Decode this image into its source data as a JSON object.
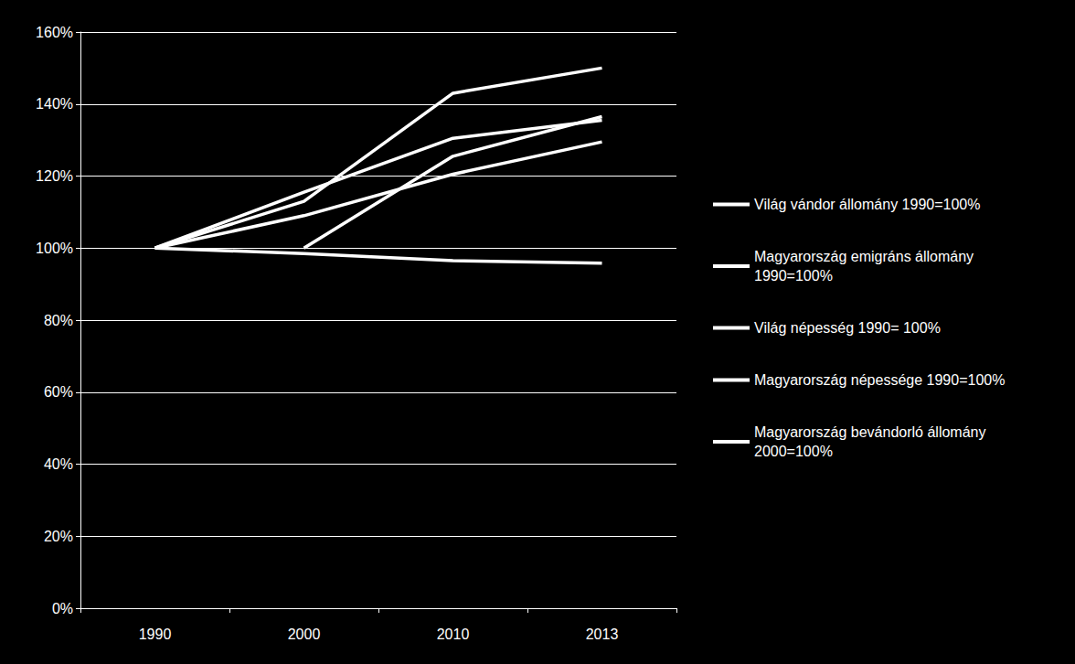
{
  "chart_data": {
    "type": "line",
    "categories": [
      "1990",
      "2000",
      "2010",
      "2013"
    ],
    "series": [
      {
        "name": "Világ vándor állomány 1990=100%",
        "color": "#ffffff",
        "values": [
          100,
          113,
          143,
          150
        ]
      },
      {
        "name": "Magyarország emigráns állomány 1990=100%",
        "color": "#ffffff",
        "values": [
          100,
          109,
          120.5,
          129.5
        ]
      },
      {
        "name": "Világ népesség 1990= 100%",
        "color": "#ffffff",
        "values": [
          100,
          115.5,
          130.5,
          135.5
        ]
      },
      {
        "name": "Magyarország népessége 1990=100%",
        "color": "#ffffff",
        "values": [
          100,
          98.5,
          96.5,
          95.8
        ]
      },
      {
        "name": "Magyarország bevándorló állomány 2000=100%",
        "color": "#ffffff",
        "values": [
          null,
          100,
          125.5,
          136.5
        ]
      }
    ],
    "ylim": [
      0,
      160
    ],
    "yticks": [
      {
        "value": 0,
        "label": "0%"
      },
      {
        "value": 20,
        "label": "20%"
      },
      {
        "value": 40,
        "label": "40%"
      },
      {
        "value": 60,
        "label": "60%"
      },
      {
        "value": 80,
        "label": "80%"
      },
      {
        "value": 100,
        "label": "100%"
      },
      {
        "value": 120,
        "label": "120%"
      },
      {
        "value": 140,
        "label": "140%"
      },
      {
        "value": 160,
        "label": "160%"
      }
    ],
    "grid": true,
    "legend": "right",
    "marker": "none",
    "line_style": "solid"
  }
}
